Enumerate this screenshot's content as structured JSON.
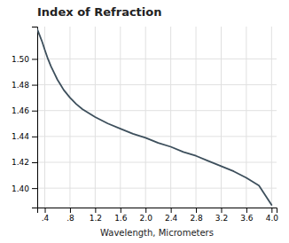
{
  "chart_data": {
    "type": "line",
    "title": "Index of Refraction",
    "xlabel": "Wavelength, Micrometers",
    "x": [
      0.28,
      0.32,
      0.36,
      0.4,
      0.45,
      0.5,
      0.55,
      0.6,
      0.65,
      0.7,
      0.8,
      0.9,
      1.0,
      1.2,
      1.4,
      1.6,
      1.8,
      2.0,
      2.2,
      2.4,
      2.6,
      2.8,
      3.0,
      3.2,
      3.4,
      3.6,
      3.8,
      4.0
    ],
    "values": [
      1.523,
      1.518,
      1.513,
      1.507,
      1.5,
      1.494,
      1.489,
      1.484,
      1.48,
      1.476,
      1.47,
      1.465,
      1.461,
      1.455,
      1.45,
      1.446,
      1.442,
      1.439,
      1.435,
      1.432,
      1.428,
      1.425,
      1.421,
      1.417,
      1.413,
      1.408,
      1.402,
      1.387
    ],
    "color": "#3d4f5c",
    "xlim": [
      0.28,
      4.08
    ],
    "ylim": [
      1.385,
      1.525
    ],
    "xticks": [
      {
        "value": 0.4,
        "label": ".4"
      },
      {
        "value": 0.8,
        "label": ".8"
      },
      1.2,
      1.6,
      {
        "value": 2.0,
        "label": "2.0"
      },
      2.4,
      2.8,
      3.2,
      3.6,
      {
        "value": 4.0,
        "label": "4.0"
      }
    ],
    "yticks": [
      {
        "value": 1.4,
        "label": "1.40"
      },
      1.42,
      1.44,
      1.46,
      1.48,
      {
        "value": 1.5,
        "label": "1.50"
      }
    ],
    "grid": true
  }
}
